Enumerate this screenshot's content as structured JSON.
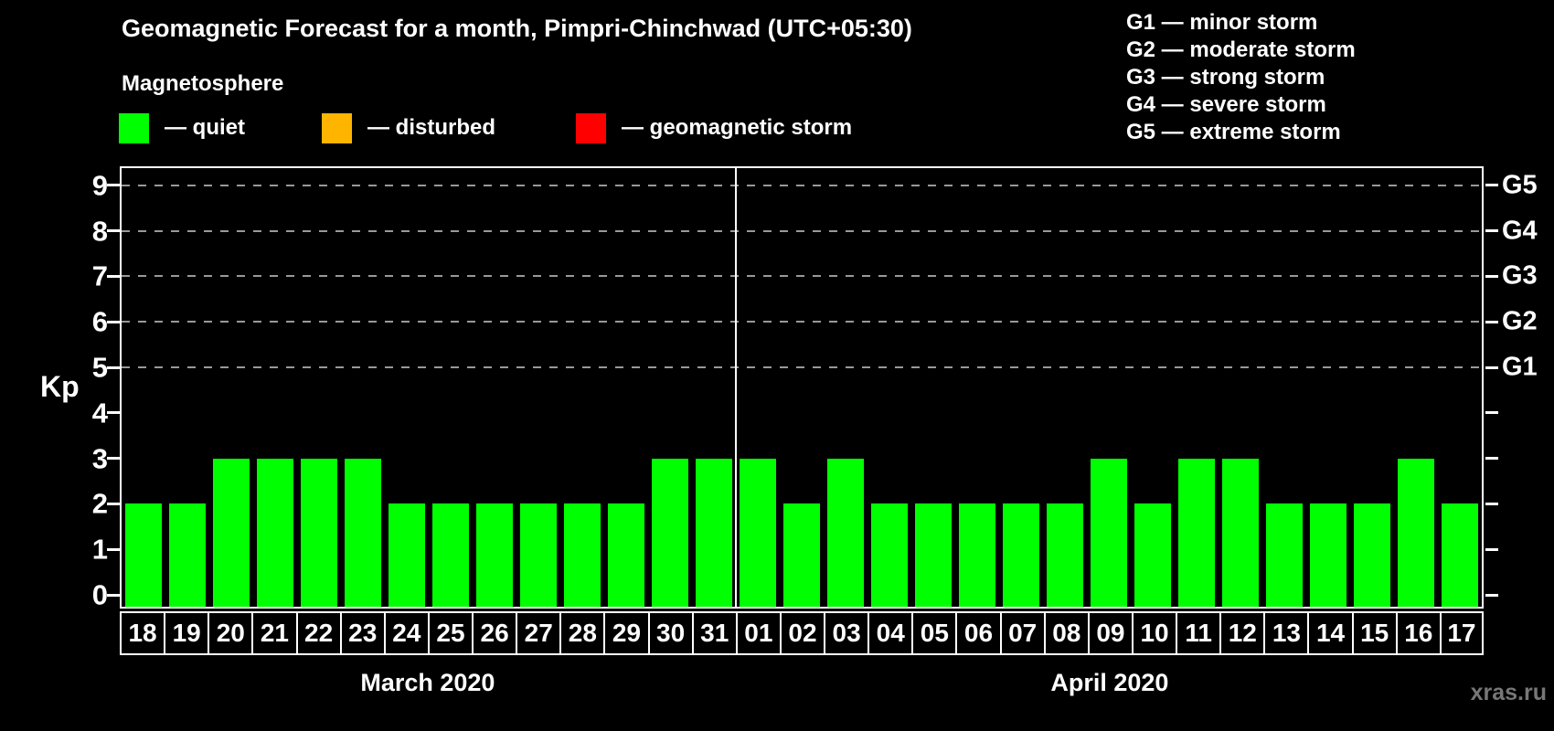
{
  "title": "Geomagnetic Forecast for a month, Pimpri-Chinchwad (UTC+05:30)",
  "magnetosphere_label": "Magnetosphere",
  "legend": {
    "items": [
      {
        "name": "quiet",
        "label": "— quiet",
        "color": "#00ff00"
      },
      {
        "name": "disturbed",
        "label": "— disturbed",
        "color": "#ffb400"
      },
      {
        "name": "geomagnetic-storm",
        "label": "— geomagnetic storm",
        "color": "#ff0000"
      }
    ]
  },
  "g_legend": [
    "G1 — minor storm",
    "G2 — moderate storm",
    "G3 — strong storm",
    "G4 — severe storm",
    "G5 — extreme storm"
  ],
  "axes": {
    "y_label": "Kp",
    "y_ticks": [
      0,
      1,
      2,
      3,
      4,
      5,
      6,
      7,
      8,
      9
    ]
  },
  "watermark": "xras.ru",
  "chart_data": {
    "type": "bar",
    "title": "Geomagnetic Forecast for a month, Pimpri-Chinchwad (UTC+05:30)",
    "xlabel": "",
    "ylabel": "Kp",
    "ylim": [
      0,
      9
    ],
    "grid": "horizontal dashed gridlines at Kp 5,6,7,8,9",
    "legend_position": "top",
    "bar_color": "#00ff00",
    "bar_color_meaning": "quiet",
    "months": [
      {
        "label": "March 2020",
        "days": [
          "18",
          "19",
          "20",
          "21",
          "22",
          "23",
          "24",
          "25",
          "26",
          "27",
          "28",
          "29",
          "30",
          "31"
        ],
        "values": [
          2,
          2,
          3,
          3,
          3,
          3,
          2,
          2,
          2,
          2,
          2,
          2,
          3,
          3
        ]
      },
      {
        "label": "April 2020",
        "days": [
          "01",
          "02",
          "03",
          "04",
          "05",
          "06",
          "07",
          "08",
          "09",
          "10",
          "11",
          "12",
          "13",
          "14",
          "15",
          "16",
          "17"
        ],
        "values": [
          3,
          2,
          3,
          2,
          2,
          2,
          2,
          2,
          3,
          2,
          3,
          3,
          2,
          2,
          2,
          3,
          2
        ]
      }
    ],
    "right_axis": [
      {
        "kp": 5,
        "label": "G1"
      },
      {
        "kp": 6,
        "label": "G2"
      },
      {
        "kp": 7,
        "label": "G3"
      },
      {
        "kp": 8,
        "label": "G4"
      },
      {
        "kp": 9,
        "label": "G5"
      }
    ]
  }
}
